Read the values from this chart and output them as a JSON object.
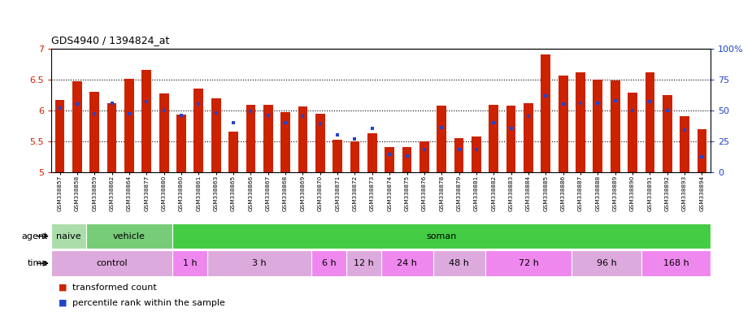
{
  "title": "GDS4940 / 1394824_at",
  "samples": [
    "GSM338857",
    "GSM338858",
    "GSM338859",
    "GSM338862",
    "GSM338864",
    "GSM338877",
    "GSM338880",
    "GSM338860",
    "GSM338861",
    "GSM338863",
    "GSM338865",
    "GSM338866",
    "GSM338867",
    "GSM338868",
    "GSM338869",
    "GSM338870",
    "GSM338871",
    "GSM338872",
    "GSM338873",
    "GSM338874",
    "GSM338875",
    "GSM338876",
    "GSM338878",
    "GSM338879",
    "GSM338881",
    "GSM338882",
    "GSM338883",
    "GSM338884",
    "GSM338885",
    "GSM338886",
    "GSM338887",
    "GSM338888",
    "GSM338889",
    "GSM338890",
    "GSM338891",
    "GSM338892",
    "GSM338893",
    "GSM338894"
  ],
  "bar_heights": [
    6.17,
    6.47,
    6.3,
    6.12,
    6.51,
    6.65,
    6.28,
    5.93,
    6.35,
    6.19,
    5.65,
    6.09,
    6.09,
    5.97,
    6.06,
    5.95,
    5.52,
    5.49,
    5.63,
    5.4,
    5.4,
    5.49,
    6.07,
    5.55,
    5.57,
    6.09,
    6.07,
    6.11,
    6.9,
    6.57,
    6.61,
    6.5,
    6.49,
    6.29,
    6.61,
    6.25,
    5.91,
    5.69
  ],
  "percentile_ranks": [
    52,
    55,
    47,
    56,
    47,
    57,
    50,
    46,
    55,
    48,
    40,
    49,
    46,
    40,
    45,
    39,
    30,
    27,
    35,
    14,
    13,
    18,
    36,
    18,
    18,
    40,
    35,
    45,
    62,
    55,
    56,
    56,
    58,
    50,
    57,
    50,
    34,
    12
  ],
  "ymin": 5.0,
  "ymax": 7.0,
  "yticks": [
    5.0,
    5.5,
    6.0,
    6.5,
    7.0
  ],
  "ytick_labels": [
    "5",
    "5.5",
    "6",
    "6.5",
    "7"
  ],
  "right_yticks": [
    0,
    25,
    50,
    75,
    100
  ],
  "right_ytick_labels": [
    "0",
    "25",
    "50",
    "75",
    "100%"
  ],
  "bar_color": "#cc2200",
  "blue_color": "#2244cc",
  "bg_color": "#ffffff",
  "agent_groups": [
    {
      "label": "naive",
      "start": 0,
      "end": 2,
      "color": "#aaddaa"
    },
    {
      "label": "vehicle",
      "start": 2,
      "end": 7,
      "color": "#77cc77"
    },
    {
      "label": "soman",
      "start": 7,
      "end": 38,
      "color": "#44cc44"
    }
  ],
  "time_groups": [
    {
      "label": "control",
      "start": 0,
      "end": 7,
      "color": "#ddaadd"
    },
    {
      "label": "1 h",
      "start": 7,
      "end": 9,
      "color": "#ee88ee"
    },
    {
      "label": "3 h",
      "start": 9,
      "end": 15,
      "color": "#ddaadd"
    },
    {
      "label": "6 h",
      "start": 15,
      "end": 17,
      "color": "#ee88ee"
    },
    {
      "label": "12 h",
      "start": 17,
      "end": 19,
      "color": "#ddaadd"
    },
    {
      "label": "24 h",
      "start": 19,
      "end": 22,
      "color": "#ee88ee"
    },
    {
      "label": "48 h",
      "start": 22,
      "end": 25,
      "color": "#ddaadd"
    },
    {
      "label": "72 h",
      "start": 25,
      "end": 30,
      "color": "#ee88ee"
    },
    {
      "label": "96 h",
      "start": 30,
      "end": 34,
      "color": "#ddaadd"
    },
    {
      "label": "168 h",
      "start": 34,
      "end": 38,
      "color": "#ee88ee"
    }
  ],
  "legend_red_label": "transformed count",
  "legend_blue_label": "percentile rank within the sample"
}
